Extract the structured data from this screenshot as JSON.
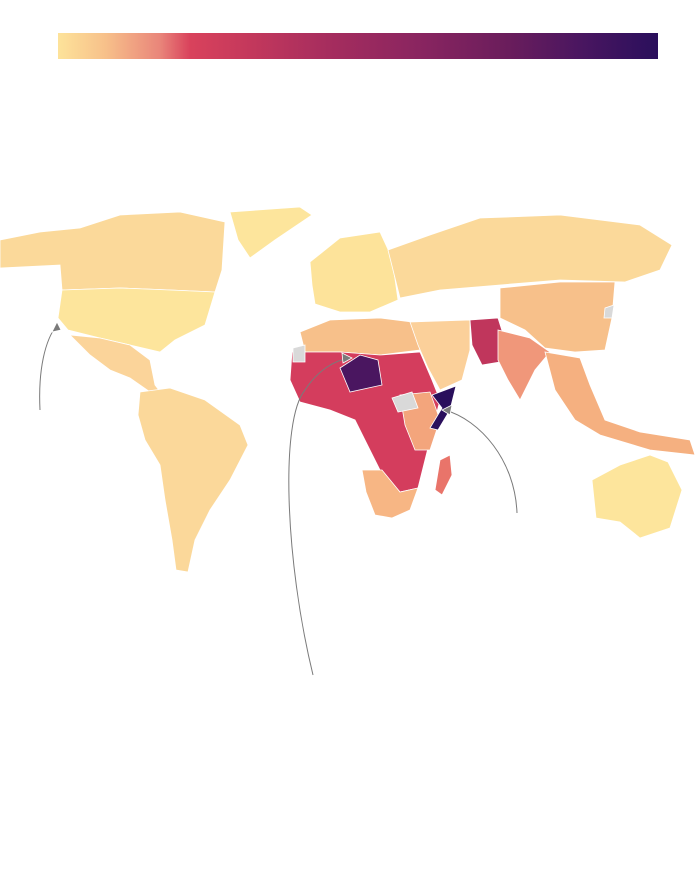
{
  "colorbar": {
    "stops": [
      "#fde39a",
      "#f7c08a",
      "#e9857a",
      "#d9425c",
      "#c83a5c",
      "#a62d5e",
      "#8a2560",
      "#6a1d5c",
      "#4a1660",
      "#2a0f5c"
    ]
  },
  "map": {
    "no_data_color": "#d9d9d9",
    "annotation_color": "#7a7a7a",
    "fills": {
      "canada": "#fbd99a",
      "greenland": "#fde59c",
      "usa": "#fde59c",
      "mexico": "#fbd49a",
      "south_america": "#fbd89a",
      "europe": "#fde39a",
      "russia": "#fbd99a",
      "north_africa": "#f7c08a",
      "sahel_central_africa": "#d43d5d",
      "niger": "#4a1660",
      "somalia": "#2a0f5c",
      "east_africa": "#f3a57c",
      "southern_africa": "#f7b684",
      "madagascar": "#e9746a",
      "middle_east": "#fbd09a",
      "afghanistan_pakistan": "#c0365c",
      "india": "#f0977a",
      "china": "#f7c08a",
      "southeast_asia": "#f5b080",
      "australia": "#fde59c"
    }
  }
}
